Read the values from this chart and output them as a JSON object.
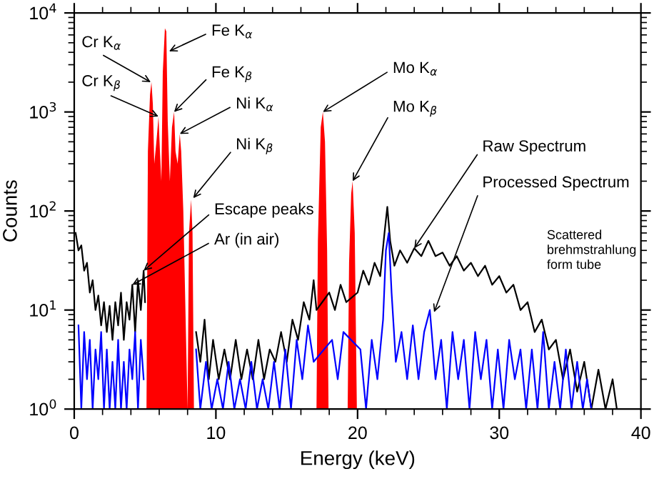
{
  "chart_data": {
    "type": "line",
    "xlabel": "Energy (keV)",
    "ylabel": "Counts",
    "log": "y",
    "grid": false,
    "xlim": [
      0,
      40
    ],
    "xticks": [
      0,
      10,
      20,
      30,
      40
    ],
    "ylim": [
      1,
      10000
    ],
    "yticks": [
      {
        "value": 1,
        "label": "10$^{0}$"
      },
      {
        "value": 10,
        "label": "10$^{1}$"
      },
      {
        "value": 100,
        "label": "10$^{2}$"
      },
      {
        "value": 1000,
        "label": "10$^{3}$"
      },
      {
        "value": 10000,
        "label": "10$^{4}$"
      }
    ],
    "series": [
      {
        "color": "#000000",
        "x": [
          0.1,
          0.3,
          0.5,
          0.7,
          0.9,
          1.1,
          1.3,
          1.5,
          1.7,
          1.9,
          2.1,
          2.3,
          2.5,
          2.7,
          2.9,
          3.1,
          3.3,
          3.5,
          3.7,
          3.9,
          4.1,
          4.3,
          4.5,
          4.7,
          4.9,
          5.0,
          6.7,
          8.6,
          8.9,
          9.2,
          9.5,
          9.8,
          10.2,
          10.6,
          11.0,
          11.4,
          11.8,
          12.2,
          12.6,
          13.0,
          13.4,
          13.8,
          14.2,
          14.6,
          15.0,
          15.4,
          15.8,
          16.2,
          16.6,
          16.9,
          17.1,
          18.0,
          18.4,
          18.8,
          19.2,
          20.0,
          20.4,
          20.8,
          21.2,
          21.6,
          21.9,
          22.1,
          22.3,
          22.6,
          23.0,
          23.5,
          24.0,
          24.5,
          25.0,
          25.5,
          26.0,
          26.5,
          27.0,
          27.5,
          28.0,
          28.5,
          29.0,
          29.5,
          30.0,
          30.5,
          31.0,
          31.5,
          32.0,
          32.5,
          33.0,
          33.5,
          34.0,
          34.5,
          35.0,
          35.5,
          36.0,
          36.5,
          37.0,
          37.5,
          38.0,
          38.3
        ],
        "values": [
          60,
          40,
          45,
          25,
          30,
          15,
          20,
          10,
          14,
          7,
          12,
          6,
          11,
          5,
          12,
          7,
          15,
          5,
          12,
          8,
          18,
          6,
          20,
          10,
          25,
          12,
          null,
          6,
          3,
          8,
          2,
          5,
          2,
          4,
          2,
          5,
          2,
          4,
          2,
          5,
          2,
          4,
          3,
          6,
          3,
          8,
          5,
          12,
          8,
          20,
          10,
          15,
          10,
          18,
          12,
          15,
          25,
          18,
          30,
          22,
          60,
          110,
          50,
          28,
          40,
          30,
          42,
          35,
          50,
          35,
          38,
          28,
          35,
          25,
          30,
          22,
          28,
          18,
          22,
          15,
          18,
          10,
          12,
          6,
          8,
          4,
          5,
          2,
          4,
          1.5,
          3,
          1,
          2.5,
          1,
          2,
          1
        ]
      },
      {
        "color": "#0000ff",
        "x": [
          0.3,
          0.5,
          0.7,
          0.9,
          1.1,
          1.3,
          1.5,
          1.7,
          1.9,
          2.1,
          2.3,
          2.5,
          2.7,
          2.9,
          3.1,
          3.3,
          3.5,
          3.7,
          3.9,
          4.1,
          4.3,
          4.5,
          4.7,
          4.9,
          6.7,
          8.6,
          8.9,
          9.3,
          9.7,
          10.1,
          10.5,
          10.9,
          11.3,
          11.7,
          12.1,
          12.5,
          12.9,
          13.3,
          13.7,
          14.1,
          14.5,
          14.9,
          15.3,
          15.7,
          16.1,
          16.5,
          16.9,
          18.2,
          18.6,
          19.0,
          20.2,
          20.6,
          21.0,
          21.4,
          21.8,
          22.0,
          22.2,
          22.4,
          22.7,
          23.1,
          23.5,
          23.9,
          24.3,
          24.7,
          25.1,
          25.5,
          25.9,
          26.3,
          26.7,
          27.1,
          27.5,
          27.9,
          28.3,
          28.7,
          29.1,
          29.5,
          29.9,
          30.3,
          30.7,
          31.1,
          31.5,
          31.9,
          32.3,
          32.7,
          33.1,
          33.5,
          33.9,
          34.3,
          34.7,
          35.1,
          35.5,
          35.9,
          36.2,
          36.5
        ],
        "values": [
          7,
          1,
          6,
          2,
          5,
          1,
          4,
          2,
          6,
          1,
          4,
          1,
          3,
          1,
          5,
          1,
          3,
          1,
          4,
          2,
          6,
          1,
          5,
          2,
          null,
          4,
          1,
          3,
          1,
          2,
          1,
          3,
          1,
          2,
          1,
          3,
          1,
          2,
          1,
          3,
          1,
          4,
          1,
          5,
          2,
          7,
          3,
          5,
          2,
          6,
          4,
          1,
          5,
          2,
          8,
          40,
          60,
          15,
          3,
          6,
          2,
          7,
          2,
          6,
          10,
          2,
          5,
          1,
          6,
          2,
          5,
          1,
          6,
          2,
          5,
          1,
          4,
          1,
          5,
          2,
          4,
          1,
          4,
          1,
          6,
          1,
          3,
          1,
          4,
          1,
          3,
          1,
          2,
          1
        ]
      },
      {
        "type": "area",
        "color": "#ff0000",
        "x": [
          5.1,
          5.2,
          5.35,
          5.45,
          5.55,
          5.65,
          5.8,
          5.95,
          6.05,
          6.15,
          6.25,
          6.4,
          6.5,
          6.6,
          6.75,
          6.9,
          7.05,
          7.15,
          7.3,
          7.45,
          7.55,
          7.7,
          8.0,
          8.1,
          8.25,
          8.35,
          8.45,
          17.1,
          17.2,
          17.4,
          17.55,
          17.7,
          17.85,
          17.95,
          19.3,
          19.4,
          19.55,
          19.65,
          19.8,
          19.95
        ],
        "values": [
          1,
          400,
          1500,
          2000,
          1200,
          300,
          500,
          900,
          400,
          200,
          2500,
          7000,
          6500,
          800,
          200,
          700,
          1000,
          400,
          300,
          600,
          400,
          100,
          1,
          60,
          130,
          60,
          1,
          1,
          50,
          700,
          1000,
          500,
          40,
          1,
          1,
          30,
          150,
          200,
          60,
          1
        ]
      }
    ],
    "annotations": [
      {
        "text": "Cr K$_{α}$",
        "x": 5.4,
        "y": 2000
      },
      {
        "text": "Cr K$_{β}$",
        "x": 5.95,
        "y": 900
      },
      {
        "text": "Fe K$_{α}$",
        "x": 6.7,
        "y": 4100
      },
      {
        "text": "Fe K$_{β}$",
        "x": 7.05,
        "y": 1000
      },
      {
        "text": "Ni K$_{α}$",
        "x": 7.45,
        "y": 600
      },
      {
        "text": "Ni K$_{β}$",
        "x": 8.4,
        "y": 135
      },
      {
        "text": "Escape peaks",
        "x": 4.9,
        "y": 25
      },
      {
        "text": "Ar (in air)",
        "x": 4.1,
        "y": 18
      },
      {
        "text": "Mo K$_{α}$",
        "x": 17.55,
        "y": 1000
      },
      {
        "text": "Mo K$_{β}$",
        "x": 19.65,
        "y": 200
      },
      {
        "text": "Raw Spectrum",
        "x": 24.0,
        "y": 42
      },
      {
        "text": "Processed Spectrum",
        "x": 25.4,
        "y": 9.5
      },
      "Scattered\nbrehmstrahlung\nform tube"
    ]
  }
}
